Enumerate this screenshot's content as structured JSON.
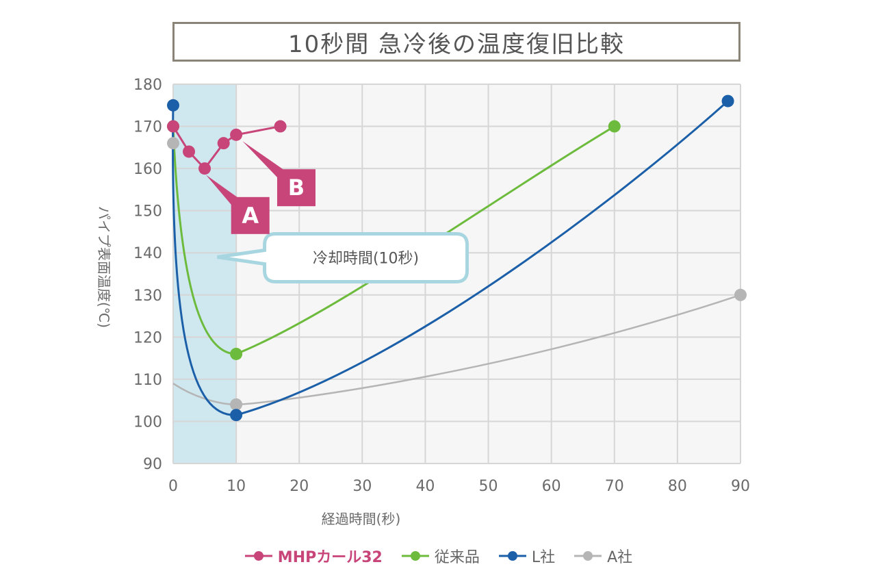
{
  "chart_data": {
    "type": "line",
    "title": "10秒間 急冷後の温度復旧比較",
    "xlabel": "経過時間(秒)",
    "ylabel": "パイプ表面温度(℃)",
    "xlim": [
      0,
      90
    ],
    "ylim": [
      90,
      180
    ],
    "x_ticks": [
      "0",
      "10",
      "20",
      "30",
      "40",
      "50",
      "60",
      "70",
      "80",
      "90"
    ],
    "y_ticks": [
      "90",
      "100",
      "110",
      "120",
      "130",
      "140",
      "150",
      "160",
      "170",
      "180"
    ],
    "grid": true,
    "shaded_region": {
      "x": [
        0,
        10
      ],
      "label": "冷却時間(10秒)"
    },
    "annotations": [
      "A",
      "B"
    ],
    "legend_position": "bottom",
    "series": [
      {
        "name": "MHPカール32",
        "color": "#c8457a",
        "x": [
          0,
          2.5,
          5,
          8,
          10,
          17
        ],
        "y": [
          170,
          164,
          160,
          166,
          168,
          170
        ]
      },
      {
        "name": "従来品",
        "color": "#6dbb3c",
        "x": [
          0,
          10,
          70
        ],
        "y": [
          170,
          116,
          170
        ]
      },
      {
        "name": "L社",
        "color": "#1b5fa8",
        "x": [
          0,
          10,
          88
        ],
        "y": [
          175,
          101.5,
          176
        ]
      },
      {
        "name": "A社",
        "color": "#b5b5b5",
        "x": [
          0,
          10,
          90
        ],
        "y": [
          166,
          104,
          130
        ]
      }
    ]
  }
}
